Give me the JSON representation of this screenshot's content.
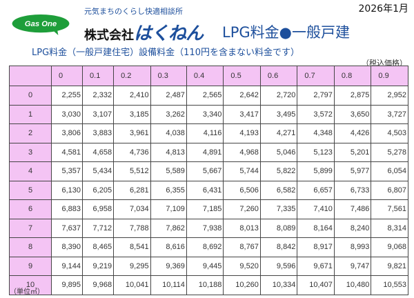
{
  "date": "2026年1月",
  "logo_text": "Gas One",
  "tagline": "元気まちのくらし快適相談所",
  "company_prefix": "株式会社",
  "company_brand": "はくねん",
  "title": "LPG料金●一般戸建",
  "subtitle": "LPG料金（一般戸建住宅）設備料金（110円を含まない料金です）",
  "tax_note": "（税込価格）",
  "unit_note": "（単位㎥）",
  "colors": {
    "accent": "#1d4f9c",
    "header_bg": "#f4c4f4",
    "logo_green": "#1e9e3a"
  },
  "table": {
    "columns": [
      "0",
      "0.1",
      "0.2",
      "0.3",
      "0.4",
      "0.5",
      "0.6",
      "0.7",
      "0.8",
      "0.9"
    ],
    "rows": [
      {
        "label": "0",
        "values": [
          "2,255",
          "2,332",
          "2,410",
          "2,487",
          "2,565",
          "2,642",
          "2,720",
          "2,797",
          "2,875",
          "2,952"
        ]
      },
      {
        "label": "1",
        "values": [
          "3,030",
          "3,107",
          "3,185",
          "3,262",
          "3,340",
          "3,417",
          "3,495",
          "3,572",
          "3,650",
          "3,727"
        ]
      },
      {
        "label": "2",
        "values": [
          "3,806",
          "3,883",
          "3,961",
          "4,038",
          "4,116",
          "4,193",
          "4,271",
          "4,348",
          "4,426",
          "4,503"
        ]
      },
      {
        "label": "3",
        "values": [
          "4,581",
          "4,658",
          "4,736",
          "4,813",
          "4,891",
          "4,968",
          "5,046",
          "5,123",
          "5,201",
          "5,278"
        ]
      },
      {
        "label": "4",
        "values": [
          "5,357",
          "5,434",
          "5,512",
          "5,589",
          "5,667",
          "5,744",
          "5,822",
          "5,899",
          "5,977",
          "6,054"
        ]
      },
      {
        "label": "5",
        "values": [
          "6,130",
          "6,205",
          "6,281",
          "6,355",
          "6,431",
          "6,506",
          "6,582",
          "6,657",
          "6,733",
          "6,807"
        ]
      },
      {
        "label": "6",
        "values": [
          "6,883",
          "6,958",
          "7,034",
          "7,109",
          "7,185",
          "7,260",
          "7,335",
          "7,410",
          "7,486",
          "7,561"
        ]
      },
      {
        "label": "7",
        "values": [
          "7,637",
          "7,712",
          "7,788",
          "7,862",
          "7,938",
          "8,013",
          "8,089",
          "8,164",
          "8,240",
          "8,314"
        ]
      },
      {
        "label": "8",
        "values": [
          "8,390",
          "8,465",
          "8,541",
          "8,616",
          "8,692",
          "8,767",
          "8,842",
          "8,917",
          "8,993",
          "9,068"
        ]
      },
      {
        "label": "9",
        "values": [
          "9,144",
          "9,219",
          "9,295",
          "9,369",
          "9,445",
          "9,520",
          "9,596",
          "9,671",
          "9,747",
          "9,821"
        ]
      },
      {
        "label": "10",
        "values": [
          "9,895",
          "9,968",
          "10,041",
          "10,114",
          "10,188",
          "10,260",
          "10,334",
          "10,407",
          "10,480",
          "10,553"
        ]
      }
    ]
  }
}
